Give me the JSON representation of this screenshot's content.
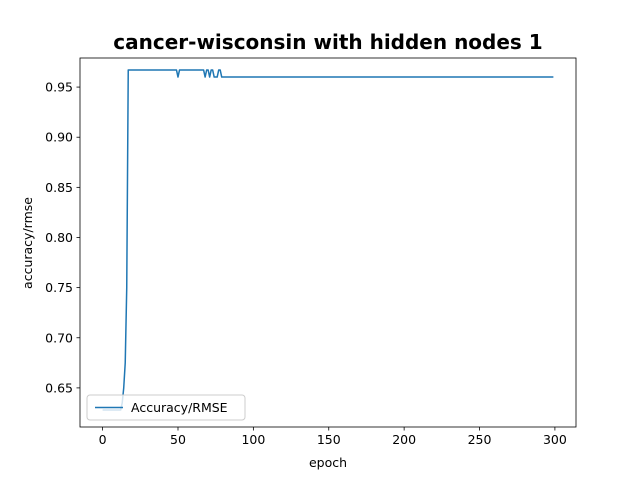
{
  "chart_data": {
    "type": "line",
    "title": "cancer-wisconsin with hidden nodes 1",
    "xlabel": "epoch",
    "ylabel": "accuracy/rmse",
    "xlim": [
      -15,
      314
    ],
    "ylim": [
      0.611,
      0.979
    ],
    "xticks": [
      0,
      50,
      100,
      150,
      200,
      250,
      300
    ],
    "yticks": [
      0.65,
      0.7,
      0.75,
      0.8,
      0.85,
      0.9,
      0.95
    ],
    "ytick_labels": [
      "0.65",
      "0.70",
      "0.75",
      "0.80",
      "0.85",
      "0.90",
      "0.95"
    ],
    "grid": false,
    "legend_position": "lower-left",
    "series": [
      {
        "name": "Accuracy/RMSE",
        "color": "#1f77b4",
        "x": [
          0,
          12,
          13,
          14,
          15,
          16,
          17,
          49,
          50,
          51,
          67,
          68,
          69,
          70,
          71,
          72,
          73,
          74,
          75,
          76,
          77,
          78,
          79,
          80,
          81,
          299
        ],
        "y": [
          0.628,
          0.628,
          0.635,
          0.65,
          0.675,
          0.75,
          0.967,
          0.967,
          0.96,
          0.967,
          0.967,
          0.96,
          0.967,
          0.967,
          0.96,
          0.967,
          0.967,
          0.96,
          0.96,
          0.96,
          0.967,
          0.967,
          0.96,
          0.96,
          0.96,
          0.96
        ]
      }
    ]
  }
}
